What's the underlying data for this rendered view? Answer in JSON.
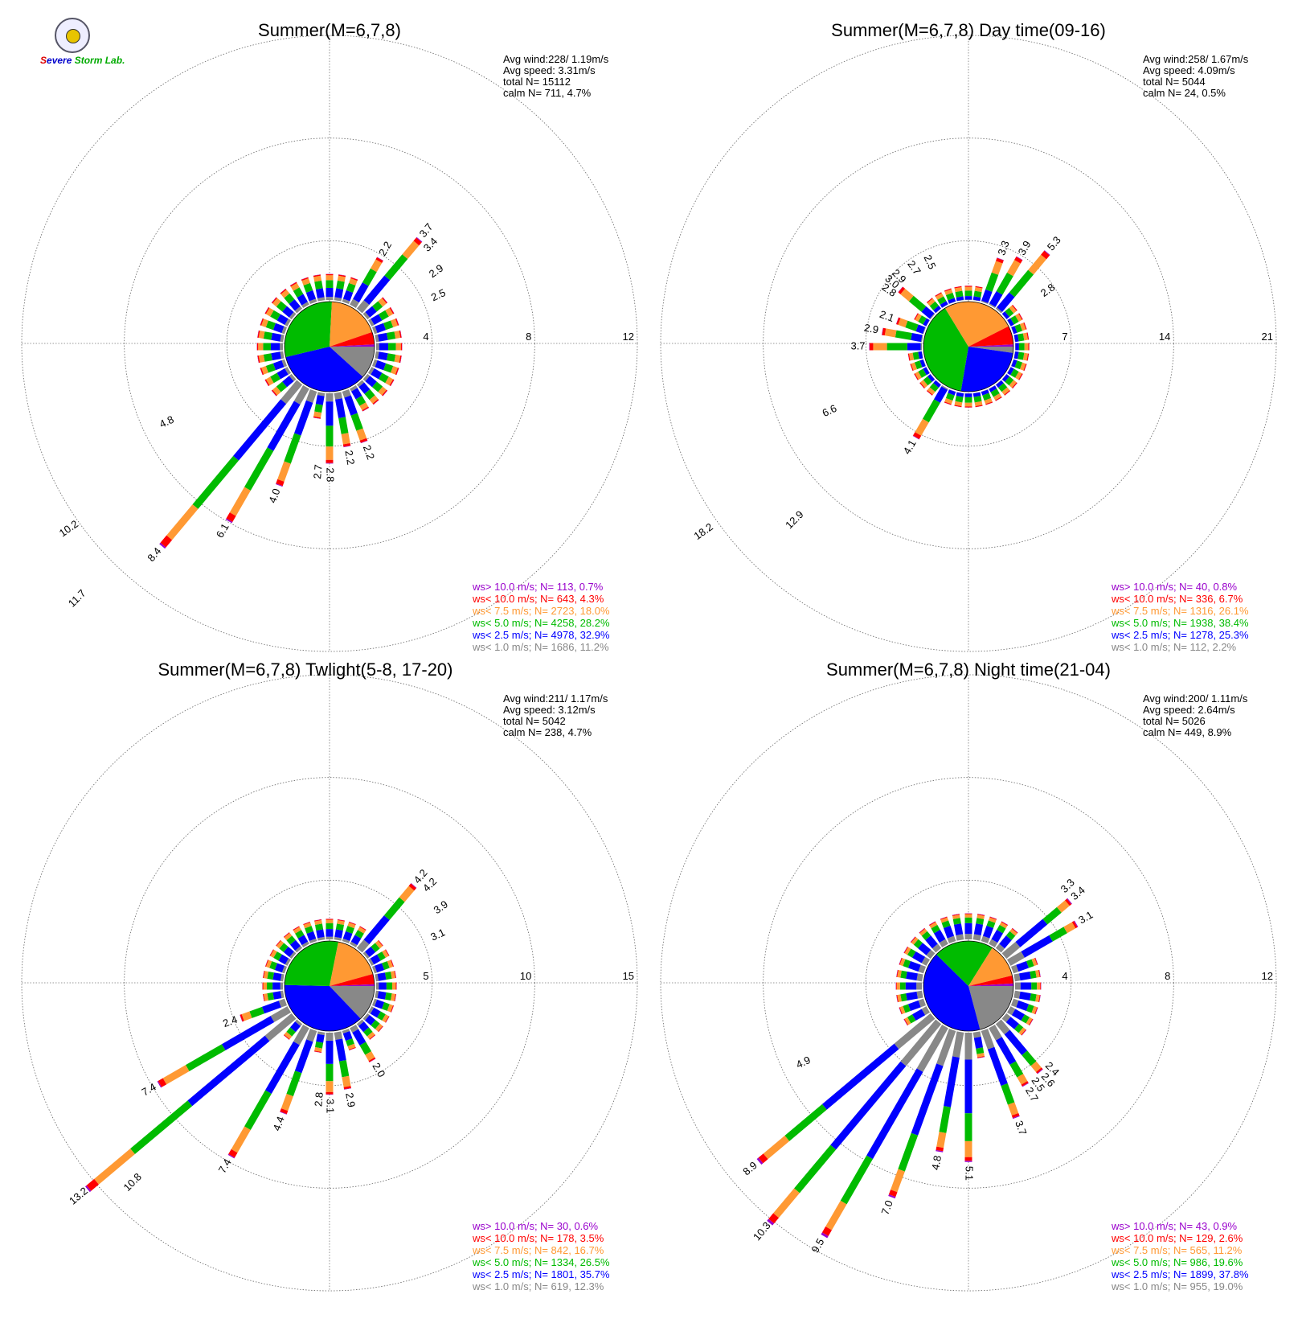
{
  "logo": {
    "name": "severe-storm-lab-logo",
    "text": "Severe Storm Lab."
  },
  "chart_data": [
    {
      "type": "wind-rose",
      "title": "Summer(M=6,7,8)",
      "stats": [
        "Avg wind:228/ 1.19m/s",
        "Avg speed: 3.31m/s",
        "total N=       15112",
        "calm N=    711,   4.7%"
      ],
      "rings": [
        4,
        8,
        12
      ],
      "rmax": 12,
      "labels": [
        {
          "dir": 30,
          "text": "2.2"
        },
        {
          "dir": 40,
          "text": "3.7"
        },
        {
          "dir": 45,
          "text": "3.4"
        },
        {
          "dir": 55,
          "text": "2.9"
        },
        {
          "dir": 65,
          "text": "2.5"
        },
        {
          "dir": 160,
          "text": "2.2"
        },
        {
          "dir": 170,
          "text": "2.2"
        },
        {
          "dir": 180,
          "text": "2.8"
        },
        {
          "dir": 185,
          "text": "2.7"
        },
        {
          "dir": 200,
          "text": "4.0"
        },
        {
          "dir": 210,
          "text": "6.1"
        },
        {
          "dir": 220,
          "text": "8.4"
        },
        {
          "dir": 225,
          "text": "11.7"
        },
        {
          "dir": 235,
          "text": "10.2"
        },
        {
          "dir": 245,
          "text": "4.8"
        }
      ],
      "pie": [
        1686,
        4978,
        4258,
        2723,
        643,
        113
      ],
      "legend": [
        {
          "color": "#9900cc",
          "text": "ws> 10.0 m/s; N=   113,  0.7%"
        },
        {
          "color": "#ff0000",
          "text": "ws< 10.0 m/s; N=   643,  4.3%"
        },
        {
          "color": "#ff9933",
          "text": "ws<  7.5 m/s; N=  2723, 18.0%"
        },
        {
          "color": "#00bb00",
          "text": "ws<  5.0 m/s; N=  4258, 28.2%"
        },
        {
          "color": "#0000ff",
          "text": "ws<  2.5 m/s; N=  4978, 32.9%"
        },
        {
          "color": "#888888",
          "text": "ws<  1.0 m/s; N=  1686, 11.2%"
        }
      ]
    },
    {
      "type": "wind-rose",
      "title": "Summer(M=6,7,8) Day time(09-16)",
      "stats": [
        "Avg wind:258/ 1.67m/s",
        "Avg speed: 4.09m/s",
        "total N=        5044",
        "calm N=     24,   0.5%"
      ],
      "rings": [
        7,
        14,
        21
      ],
      "rmax": 21,
      "labels": [
        {
          "dir": 20,
          "text": "3.3"
        },
        {
          "dir": 30,
          "text": "3.9"
        },
        {
          "dir": 40,
          "text": "5.3"
        },
        {
          "dir": 55,
          "text": "2.8"
        },
        {
          "dir": 335,
          "text": "2.5"
        },
        {
          "dir": 325,
          "text": "2.7"
        },
        {
          "dir": 315,
          "text": "2.9"
        },
        {
          "dir": 310,
          "text": "3.0"
        },
        {
          "dir": 305,
          "text": "2.8"
        },
        {
          "dir": 290,
          "text": "2.1"
        },
        {
          "dir": 280,
          "text": "2.9"
        },
        {
          "dir": 270,
          "text": "3.7"
        },
        {
          "dir": 245,
          "text": "6.6"
        },
        {
          "dir": 235,
          "text": "18.2"
        },
        {
          "dir": 225,
          "text": "12.9"
        },
        {
          "dir": 210,
          "text": "4.1"
        }
      ],
      "pie": [
        112,
        1278,
        1938,
        1316,
        336,
        40
      ],
      "legend": [
        {
          "color": "#9900cc",
          "text": "ws> 10.0 m/s; N=    40,  0.8%"
        },
        {
          "color": "#ff0000",
          "text": "ws< 10.0 m/s; N=   336,  6.7%"
        },
        {
          "color": "#ff9933",
          "text": "ws<  7.5 m/s; N=  1316, 26.1%"
        },
        {
          "color": "#00bb00",
          "text": "ws<  5.0 m/s; N=  1938, 38.4%"
        },
        {
          "color": "#0000ff",
          "text": "ws<  2.5 m/s; N=  1278, 25.3%"
        },
        {
          "color": "#888888",
          "text": "ws<  1.0 m/s; N=   112,  2.2%"
        }
      ]
    },
    {
      "type": "wind-rose",
      "title": "Summer(M=6,7,8) Twlight(5-8, 17-20)",
      "stats": [
        "Avg wind:211/ 1.17m/s",
        "Avg speed: 3.12m/s",
        "total N=        5042",
        "calm N=    238,   4.7%"
      ],
      "rings": [
        5,
        10,
        15
      ],
      "rmax": 15,
      "labels": [
        {
          "dir": 40,
          "text": "4.2"
        },
        {
          "dir": 45,
          "text": "4.2"
        },
        {
          "dir": 55,
          "text": "3.9"
        },
        {
          "dir": 65,
          "text": "3.1"
        },
        {
          "dir": 150,
          "text": "2.0"
        },
        {
          "dir": 170,
          "text": "2.9"
        },
        {
          "dir": 180,
          "text": "3.1"
        },
        {
          "dir": 185,
          "text": "2.8"
        },
        {
          "dir": 200,
          "text": "4.4"
        },
        {
          "dir": 210,
          "text": "7.4"
        },
        {
          "dir": 225,
          "text": "10.8"
        },
        {
          "dir": 230,
          "text": "13.2"
        },
        {
          "dir": 240,
          "text": "7.4"
        },
        {
          "dir": 250,
          "text": "2.4"
        }
      ],
      "pie": [
        619,
        1801,
        1334,
        842,
        178,
        30
      ],
      "legend": [
        {
          "color": "#9900cc",
          "text": "ws> 10.0 m/s; N=    30,  0.6%"
        },
        {
          "color": "#ff0000",
          "text": "ws< 10.0 m/s; N=   178,  3.5%"
        },
        {
          "color": "#ff9933",
          "text": "ws<  7.5 m/s; N=   842, 16.7%"
        },
        {
          "color": "#00bb00",
          "text": "ws<  5.0 m/s; N=  1334, 26.5%"
        },
        {
          "color": "#0000ff",
          "text": "ws<  2.5 m/s; N=  1801, 35.7%"
        },
        {
          "color": "#888888",
          "text": "ws<  1.0 m/s; N=   619, 12.3%"
        }
      ]
    },
    {
      "type": "wind-rose",
      "title": "Summer(M=6,7,8) Night time(21-04)",
      "stats": [
        "Avg wind:200/ 1.11m/s",
        "Avg speed: 2.64m/s",
        "total N=        5026",
        "calm N=    449,   8.9%"
      ],
      "rings": [
        4,
        8,
        12
      ],
      "rmax": 12,
      "labels": [
        {
          "dir": 45,
          "text": "3.3"
        },
        {
          "dir": 50,
          "text": "3.4"
        },
        {
          "dir": 60,
          "text": "3.1"
        },
        {
          "dir": 135,
          "text": "2.4"
        },
        {
          "dir": 140,
          "text": "2.6"
        },
        {
          "dir": 145,
          "text": "2.5"
        },
        {
          "dir": 150,
          "text": "2.7"
        },
        {
          "dir": 160,
          "text": "3.7"
        },
        {
          "dir": 180,
          "text": "5.1"
        },
        {
          "dir": 190,
          "text": "4.8"
        },
        {
          "dir": 200,
          "text": "7.0"
        },
        {
          "dir": 210,
          "text": "9.5"
        },
        {
          "dir": 220,
          "text": "10.3"
        },
        {
          "dir": 230,
          "text": "8.9"
        },
        {
          "dir": 245,
          "text": "4.9"
        }
      ],
      "pie": [
        955,
        1899,
        986,
        565,
        129,
        43
      ],
      "legend": [
        {
          "color": "#9900cc",
          "text": "ws> 10.0 m/s; N=    43,  0.9%"
        },
        {
          "color": "#ff0000",
          "text": "ws< 10.0 m/s; N=   129,  2.6%"
        },
        {
          "color": "#ff9933",
          "text": "ws<  7.5 m/s; N=   565, 11.2%"
        },
        {
          "color": "#00bb00",
          "text": "ws<  5.0 m/s; N=   986, 19.6%"
        },
        {
          "color": "#0000ff",
          "text": "ws<  2.5 m/s; N=  1899, 37.8%"
        },
        {
          "color": "#888888",
          "text": "ws<  1.0 m/s; N=   955, 19.0%"
        }
      ]
    }
  ]
}
